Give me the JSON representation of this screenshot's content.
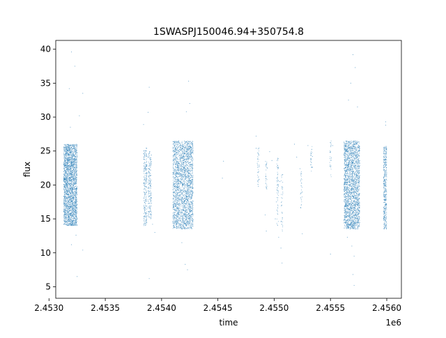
{
  "chart_data": {
    "type": "scatter",
    "title": "1SWASPJ150046.94+350754.8",
    "xlabel": "time",
    "ylabel": "flux",
    "x_offset_label": "1e6",
    "xlim": [
      2.45306,
      2.45613
    ],
    "ylim": [
      3.3,
      41.3
    ],
    "x_ticks": [
      2.453,
      2.4535,
      2.454,
      2.4545,
      2.455,
      2.4555,
      2.456
    ],
    "x_tick_labels": [
      "2.4530",
      "2.4535",
      "2.4540",
      "2.4545",
      "2.4550",
      "2.4555",
      "2.4560"
    ],
    "y_ticks": [
      5,
      10,
      15,
      20,
      25,
      30,
      35,
      40
    ],
    "y_tick_labels": [
      "5",
      "10",
      "15",
      "20",
      "25",
      "30",
      "35",
      "40"
    ],
    "grid": false,
    "legend": false,
    "marker_color": "#1f77b4",
    "series": [
      {
        "clusters": [
          {
            "x": [
              2.45313,
              2.45325
            ],
            "y": [
              14.0,
              26.0
            ],
            "n": 2600
          },
          {
            "x": [
              2.45384,
              2.45387
            ],
            "y": [
              14.0,
              25.5
            ],
            "n": 260
          },
          {
            "x": [
              2.45388,
              2.45391
            ],
            "y": [
              15.0,
              25.0
            ],
            "n": 200
          },
          {
            "x": [
              2.4541,
              2.45428
            ],
            "y": [
              13.5,
              26.5
            ],
            "n": 2600
          },
          {
            "x": [
              2.45562,
              2.45576
            ],
            "y": [
              13.5,
              26.5
            ],
            "n": 2400
          },
          {
            "x": [
              2.45597,
              2.456
            ],
            "y": [
              13.5,
              25.8
            ],
            "n": 450
          }
        ],
        "sparse_points": [
          [
            2.4532,
            39.6
          ],
          [
            2.45323,
            37.5
          ],
          [
            2.45318,
            34.2
          ],
          [
            2.4533,
            33.5
          ],
          [
            2.45319,
            28.5
          ],
          [
            2.45327,
            30.2
          ],
          [
            2.45324,
            12.6
          ],
          [
            2.4533,
            10.4
          ],
          [
            2.45325,
            6.5
          ],
          [
            2.4532,
            11.2
          ],
          [
            2.45389,
            34.4
          ],
          [
            2.45388,
            30.7
          ],
          [
            2.45384,
            28.9
          ],
          [
            2.45389,
            6.2
          ],
          [
            2.45394,
            13.0
          ],
          [
            2.45392,
            14.2
          ],
          [
            2.45424,
            35.3
          ],
          [
            2.45425,
            32.0
          ],
          [
            2.45422,
            30.8
          ],
          [
            2.45421,
            8.3
          ],
          [
            2.45423,
            7.5
          ],
          [
            2.45418,
            11.5
          ],
          [
            2.45455,
            23.5
          ],
          [
            2.45454,
            21.0
          ],
          [
            2.45484,
            27.2
          ],
          [
            2.45484,
            25.4
          ],
          [
            2.45485,
            23.2
          ],
          [
            2.45486,
            19.8
          ],
          [
            2.45492,
            15.6
          ],
          [
            2.45493,
            13.2
          ],
          [
            2.45494,
            22.5
          ],
          [
            2.45496,
            24.9
          ],
          [
            2.45498,
            23.6
          ],
          [
            2.45501,
            15.0
          ],
          [
            2.45502,
            17.5
          ],
          [
            2.45503,
            21.5
          ],
          [
            2.45504,
            12.3
          ],
          [
            2.45505,
            20.5
          ],
          [
            2.45506,
            10.7
          ],
          [
            2.45507,
            8.5
          ],
          [
            2.45503,
            23.8
          ],
          [
            2.45518,
            26.0
          ],
          [
            2.4552,
            24.1
          ],
          [
            2.45523,
            22.4
          ],
          [
            2.45525,
            12.8
          ],
          [
            2.45525,
            19.0
          ],
          [
            2.4553,
            25.8
          ],
          [
            2.45534,
            24.2
          ],
          [
            2.45534,
            22.6
          ],
          [
            2.45552,
            25.8
          ],
          [
            2.4555,
            9.8
          ],
          [
            2.4557,
            39.2
          ],
          [
            2.45572,
            37.3
          ],
          [
            2.45568,
            35.0
          ],
          [
            2.45566,
            32.5
          ],
          [
            2.45574,
            31.5
          ],
          [
            2.45569,
            11.0
          ],
          [
            2.45571,
            9.5
          ],
          [
            2.4557,
            6.8
          ],
          [
            2.45571,
            5.2
          ],
          [
            2.45565,
            12.3
          ],
          [
            2.45599,
            29.3
          ],
          [
            2.45599,
            28.8
          ]
        ],
        "vertical_streaks": [
          {
            "x": 2.45486,
            "y": [
              20.0,
              25.5
            ],
            "n": 40
          },
          {
            "x": 2.45493,
            "y": [
              19.0,
              23.5
            ],
            "n": 30
          },
          {
            "x": 2.45503,
            "y": [
              14.0,
              24.0
            ],
            "n": 60
          },
          {
            "x": 2.45507,
            "y": [
              13.0,
              22.0
            ],
            "n": 40
          },
          {
            "x": 2.45524,
            "y": [
              16.0,
              22.5
            ],
            "n": 30
          },
          {
            "x": 2.45533,
            "y": [
              22.0,
              25.8
            ],
            "n": 25
          },
          {
            "x": 2.4555,
            "y": [
              21.0,
              26.5
            ],
            "n": 30
          }
        ]
      }
    ]
  }
}
